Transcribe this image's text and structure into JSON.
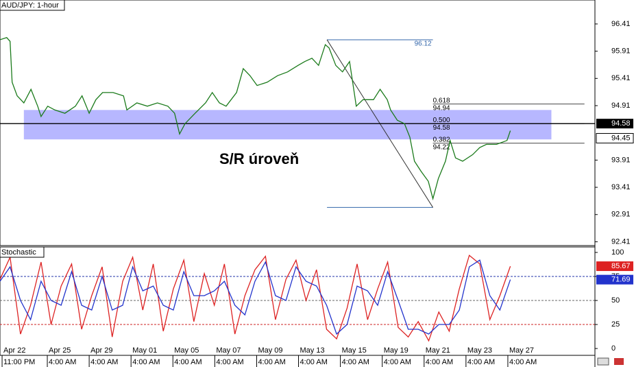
{
  "chart_data": [
    {
      "type": "line",
      "title": "AUD/JPY: 1-hour",
      "annotation": "S/R úroveň",
      "xlim": [
        -0.13,
        14.08
      ],
      "ylim": [
        92.34,
        96.85
      ],
      "yticks": [
        92.41,
        92.91,
        93.41,
        93.91,
        94.91,
        95.41,
        95.91,
        96.41
      ],
      "x": [
        -0.13,
        0.03,
        0.11,
        0.16,
        0.28,
        0.44,
        0.61,
        0.77,
        0.85,
        1.01,
        1.18,
        1.42,
        1.67,
        1.83,
        2.0,
        2.16,
        2.32,
        2.57,
        2.82,
        2.9,
        3.14,
        3.39,
        3.63,
        3.88,
        4.04,
        4.16,
        4.29,
        4.53,
        4.78,
        4.94,
        5.11,
        5.27,
        5.52,
        5.68,
        5.84,
        6.01,
        6.25,
        6.5,
        6.74,
        6.99,
        7.15,
        7.32,
        7.48,
        7.64,
        7.73,
        7.89,
        8.05,
        8.22,
        8.38,
        8.54,
        8.79,
        8.95,
        9.12,
        9.2,
        9.36,
        9.53,
        9.66,
        9.77,
        9.93,
        10.1,
        10.21,
        10.34,
        10.51,
        10.62,
        10.75,
        10.92,
        11.16,
        11.33,
        11.49,
        11.73,
        11.98,
        12.06
      ],
      "series": [
        {
          "color": "#1a7a1a",
          "values": [
            96.12,
            96.16,
            96.09,
            95.34,
            95.09,
            94.96,
            95.21,
            94.9,
            94.71,
            94.9,
            94.83,
            94.77,
            94.9,
            95.09,
            94.77,
            95.02,
            95.15,
            95.15,
            95.09,
            94.83,
            94.96,
            94.9,
            94.96,
            94.9,
            94.77,
            94.39,
            94.58,
            94.77,
            94.96,
            95.15,
            94.96,
            94.9,
            95.15,
            95.59,
            95.46,
            95.28,
            95.34,
            95.46,
            95.53,
            95.65,
            95.72,
            95.78,
            95.65,
            96.03,
            95.97,
            95.65,
            95.53,
            95.72,
            94.9,
            95.02,
            95.02,
            95.21,
            95.02,
            94.83,
            94.64,
            94.58,
            94.33,
            93.89,
            93.7,
            93.52,
            93.2,
            93.57,
            93.89,
            94.27,
            93.95,
            93.89,
            94.01,
            94.14,
            94.2,
            94.2,
            94.27,
            94.45
          ]
        }
      ],
      "zone": {
        "xlim": [
          0.44,
          13.04
        ],
        "ylim": [
          94.29,
          94.83
        ],
        "color": "#9999ff"
      },
      "price_line": 94.58,
      "fib": {
        "high": 96.12,
        "low": 93.04,
        "x": [
          7.68,
          10.21
        ],
        "level_end": 13.83,
        "color": "#3366aa",
        "levels": [
          {
            "ratio": 0.618,
            "price": 94.94
          },
          {
            "ratio": {
              "value": 0.5,
              "label": "0.500"
            },
            "price": 94.58
          },
          {
            "ratio": 0.382,
            "price": 94.22
          }
        ]
      }
    },
    {
      "type": "line",
      "title": "Stochastic",
      "xlim": [
        -0.13,
        14.08
      ],
      "ylim": [
        -7.1,
        105.7
      ],
      "yticks": [
        0,
        25,
        50,
        75,
        100
      ],
      "levels": [
        75,
        50,
        25
      ],
      "level_colors": [
        "#2233aa",
        "#666666",
        "#cc2222"
      ],
      "xticks": [
        {
          "value": -0.08,
          "label": "Apr 22"
        },
        {
          "value": 1,
          "label": "Apr 25"
        },
        {
          "value": 2,
          "label": "Apr 29"
        },
        {
          "value": 3,
          "label": "May 01"
        },
        {
          "value": 4,
          "label": "May 05"
        },
        {
          "value": 5,
          "label": "May 07"
        },
        {
          "value": 6,
          "label": "May 09"
        },
        {
          "value": 7,
          "label": "May 13"
        },
        {
          "value": 8,
          "label": "May 15"
        },
        {
          "value": 9,
          "label": "May 19"
        },
        {
          "value": 10,
          "label": "May 21"
        },
        {
          "value": 11,
          "label": "May 23"
        },
        {
          "value": 12,
          "label": "May 27"
        }
      ],
      "xtick_times": [
        "11:00 PM",
        "4:00 AM",
        "4:00 AM",
        "4:00 AM",
        "4:00 AM",
        "4:00 AM",
        "4:00 AM",
        "4:00 AM",
        "4:00 AM",
        "4:00 AM",
        "4:00 AM",
        "4:00 AM",
        "4:00 AM"
      ],
      "x": [
        -0.13,
        0.11,
        0.36,
        0.6,
        0.85,
        1.09,
        1.33,
        1.58,
        1.82,
        2.06,
        2.31,
        2.55,
        2.8,
        3.04,
        3.28,
        3.53,
        3.77,
        4.01,
        4.26,
        4.5,
        4.75,
        4.99,
        5.23,
        5.48,
        5.72,
        5.96,
        6.21,
        6.45,
        6.7,
        6.94,
        7.18,
        7.43,
        7.67,
        7.91,
        8.16,
        8.4,
        8.65,
        8.89,
        9.13,
        9.38,
        9.62,
        9.86,
        10.11,
        10.35,
        10.6,
        10.84,
        11.08,
        11.33,
        11.57,
        11.81,
        12.06
      ],
      "series": [
        {
          "color": "#dd2222",
          "values": [
            72,
            95,
            15,
            45,
            90,
            25,
            65,
            88,
            20,
            55,
            85,
            12,
            70,
            95,
            40,
            88,
            18,
            62,
            92,
            28,
            78,
            45,
            88,
            15,
            55,
            82,
            96,
            30,
            72,
            92,
            50,
            82,
            20,
            10,
            42,
            88,
            30,
            62,
            90,
            22,
            12,
            28,
            8,
            38,
            18,
            62,
            97,
            88,
            30,
            55,
            85.67
          ]
        },
        {
          "color": "#2233cc",
          "values": [
            70,
            85,
            50,
            30,
            70,
            50,
            45,
            80,
            45,
            40,
            75,
            40,
            45,
            85,
            60,
            65,
            45,
            40,
            80,
            55,
            55,
            60,
            70,
            45,
            35,
            70,
            90,
            55,
            50,
            85,
            70,
            65,
            45,
            15,
            25,
            65,
            60,
            45,
            80,
            50,
            20,
            20,
            15,
            25,
            25,
            40,
            85,
            92,
            55,
            40,
            71.69
          ]
        }
      ]
    }
  ]
}
